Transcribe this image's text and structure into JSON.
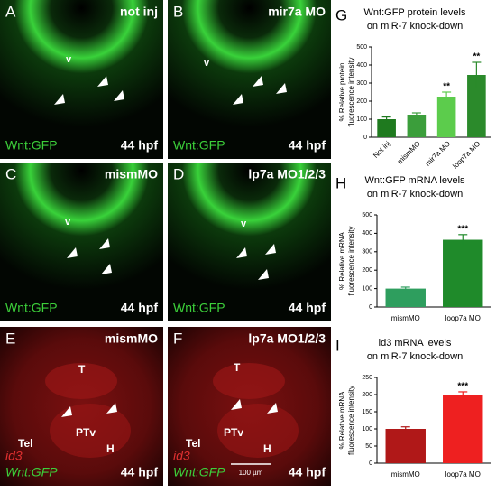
{
  "panels": [
    {
      "letter": "A",
      "condition": "not inj",
      "markers": [
        "Wnt:GFP"
      ],
      "stage": "44 hpf",
      "regions": [
        "v"
      ]
    },
    {
      "letter": "B",
      "condition": "mir7a MO",
      "markers": [
        "Wnt:GFP"
      ],
      "stage": "44 hpf",
      "regions": [
        "v"
      ]
    },
    {
      "letter": "C",
      "condition": "mismMO",
      "markers": [
        "Wnt:GFP"
      ],
      "stage": "44 hpf",
      "regions": [
        "v"
      ]
    },
    {
      "letter": "D",
      "condition": "lp7a MO1/2/3",
      "markers": [
        "Wnt:GFP"
      ],
      "stage": "44 hpf",
      "regions": [
        "v"
      ]
    },
    {
      "letter": "E",
      "condition": "mismMO",
      "markers": [
        "id3",
        "Wnt:GFP"
      ],
      "stage": "44 hpf",
      "regions": [
        "T",
        "PTv",
        "H",
        "Tel"
      ]
    },
    {
      "letter": "F",
      "condition": "lp7a MO1/2/3",
      "markers": [
        "id3",
        "Wnt:GFP"
      ],
      "stage": "44 hpf",
      "regions": [
        "T",
        "PTv",
        "H",
        "Tel"
      ],
      "scale_bar": "100 µm"
    }
  ],
  "chart_data": [
    {
      "type": "bar",
      "letter": "G",
      "title": [
        "Wnt:GFP protein levels",
        "on miR-7 knock-down"
      ],
      "ylabel": [
        "% Relative protein",
        "fluorescence intensity"
      ],
      "categories": [
        "Not inj",
        "mismMO",
        "mir7a MO",
        "loop7a MO"
      ],
      "values": [
        100,
        125,
        225,
        345
      ],
      "errors": [
        12,
        10,
        25,
        70
      ],
      "colors": [
        "#1f7a1f",
        "#3b9e3b",
        "#5ccc4c",
        "#2b8a2b"
      ],
      "significance": {
        "mir7a MO": "**",
        "loop7a MO": "**"
      },
      "ylim": [
        0,
        500
      ],
      "yticks": [
        0,
        100,
        200,
        300,
        400,
        500
      ]
    },
    {
      "type": "bar",
      "letter": "H",
      "title": [
        "Wnt:GFP mRNA levels",
        "on miR-7 knock-down"
      ],
      "ylabel": [
        "% Relative mRNA",
        "fluorescence intensity"
      ],
      "categories": [
        "mismMO",
        "loop7a MO"
      ],
      "values": [
        100,
        365
      ],
      "errors": [
        8,
        28
      ],
      "colors": [
        "#2e9e5e",
        "#1f8a2a"
      ],
      "significance": {
        "loop7a MO": "***"
      },
      "ylim": [
        0,
        500
      ],
      "yticks": [
        0,
        100,
        200,
        300,
        400,
        500
      ]
    },
    {
      "type": "bar",
      "letter": "I",
      "title": [
        "id3 mRNA levels",
        "on miR-7 knock-down"
      ],
      "ylabel": [
        "% Relative mRNA",
        "fluorescence intensity"
      ],
      "categories": [
        "mismMO",
        "loop7a MO"
      ],
      "values": [
        100,
        200
      ],
      "errors": [
        6,
        8
      ],
      "colors": [
        "#b01818",
        "#ee2020"
      ],
      "significance": {
        "loop7a MO": "***"
      },
      "ylim": [
        0,
        250
      ],
      "yticks": [
        0,
        50,
        100,
        150,
        200,
        250
      ]
    }
  ]
}
